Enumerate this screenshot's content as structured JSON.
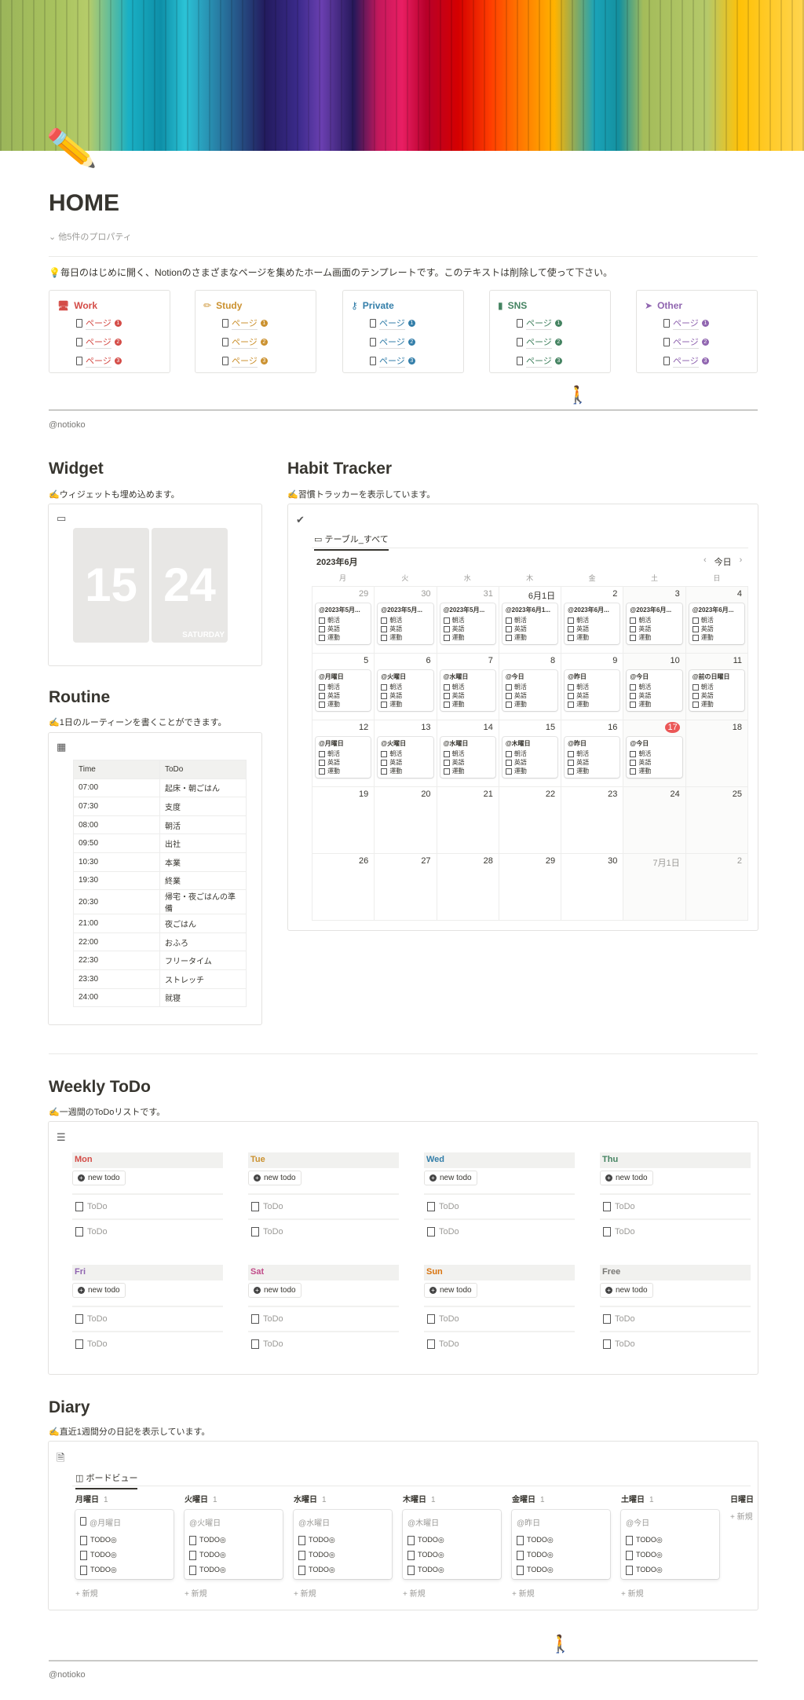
{
  "page": {
    "title": "HOME",
    "icon": "pencil-icon",
    "properties_toggle": "他5件のプロパティ",
    "description": "💡毎日のはじめに開く、Notionのさまざまなページを集めたホーム画面のテンプレートです。このテキストは削除して使って下さい。",
    "signature": "@notioko"
  },
  "categories": [
    {
      "label": "Work",
      "color": "#d44c47",
      "icon": "desktop-icon",
      "links": [
        "ページ",
        "ページ",
        "ページ"
      ]
    },
    {
      "label": "Study",
      "color": "#cb912f",
      "icon": "pencil-icon",
      "links": [
        "ページ",
        "ページ",
        "ページ"
      ]
    },
    {
      "label": "Private",
      "color": "#337ea9",
      "icon": "key-icon",
      "links": [
        "ページ",
        "ページ",
        "ページ"
      ]
    },
    {
      "label": "SNS",
      "color": "#448361",
      "icon": "phone-icon",
      "links": [
        "ページ",
        "ページ",
        "ページ"
      ]
    },
    {
      "label": "Other",
      "color": "#9065b0",
      "icon": "cursor-icon",
      "links": [
        "ページ",
        "ページ",
        "ページ"
      ]
    }
  ],
  "widget": {
    "heading": "Widget",
    "subtitle": "✍️ウィジェットも埋め込めます。",
    "hour": "15",
    "minute": "24",
    "weekday": "SATURDAY"
  },
  "routine": {
    "heading": "Routine",
    "subtitle": "✍️1日のルーティーンを書くことができます。",
    "columns": [
      "Time",
      "ToDo"
    ],
    "rows": [
      [
        "07:00",
        "起床・朝ごはん"
      ],
      [
        "07:30",
        "支度"
      ],
      [
        "08:00",
        "朝活"
      ],
      [
        "09:50",
        "出社"
      ],
      [
        "10:30",
        "本業"
      ],
      [
        "19:30",
        "終業"
      ],
      [
        "20:30",
        "帰宅・夜ごはんの準備"
      ],
      [
        "21:00",
        "夜ごはん"
      ],
      [
        "22:00",
        "おふろ"
      ],
      [
        "22:30",
        "フリータイム"
      ],
      [
        "23:30",
        "ストレッチ"
      ],
      [
        "24:00",
        "就寝"
      ]
    ]
  },
  "habit": {
    "heading": "Habit Tracker",
    "subtitle": "✍️習慣トラッカーを表示しています。",
    "tab": "テーブル_すべて",
    "month": "2023年6月",
    "today_button": "今日",
    "weekdays": [
      "月",
      "火",
      "水",
      "木",
      "金",
      "土",
      "日"
    ],
    "habits": [
      "朝活",
      "英語",
      "運動"
    ],
    "today": "17",
    "weeks": [
      [
        {
          "d": "29",
          "o": true,
          "t": "@2023年5月..."
        },
        {
          "d": "30",
          "o": true,
          "t": "@2023年5月..."
        },
        {
          "d": "31",
          "o": true,
          "t": "@2023年5月..."
        },
        {
          "d": "6月1日",
          "t": "@2023年6月1..."
        },
        {
          "d": "2",
          "t": "@2023年6月..."
        },
        {
          "d": "3",
          "t": "@2023年6月..."
        },
        {
          "d": "4",
          "t": "@2023年6月..."
        }
      ],
      [
        {
          "d": "5",
          "t": "@月曜日"
        },
        {
          "d": "6",
          "t": "@火曜日"
        },
        {
          "d": "7",
          "t": "@水曜日"
        },
        {
          "d": "8",
          "t": "@今日"
        },
        {
          "d": "9",
          "t": "@昨日"
        },
        {
          "d": "10",
          "t": "@今日"
        },
        {
          "d": "11",
          "t": "@前の日曜日"
        }
      ],
      [
        {
          "d": "12",
          "t": "@月曜日"
        },
        {
          "d": "13",
          "t": "@火曜日"
        },
        {
          "d": "14",
          "t": "@水曜日"
        },
        {
          "d": "15",
          "t": "@木曜日"
        },
        {
          "d": "16",
          "t": "@昨日"
        },
        {
          "d": "17",
          "t": "@今日"
        },
        {
          "d": "18"
        }
      ],
      [
        {
          "d": "19"
        },
        {
          "d": "20"
        },
        {
          "d": "21"
        },
        {
          "d": "22"
        },
        {
          "d": "23"
        },
        {
          "d": "24"
        },
        {
          "d": "25"
        }
      ],
      [
        {
          "d": "26"
        },
        {
          "d": "27"
        },
        {
          "d": "28"
        },
        {
          "d": "29"
        },
        {
          "d": "30"
        },
        {
          "d": "7月1日",
          "o": true
        },
        {
          "d": "2",
          "o": true
        }
      ]
    ]
  },
  "weekly": {
    "heading": "Weekly ToDo",
    "subtitle": "✍️一週間のToDoリストです。",
    "new_label": "new todo",
    "item_placeholder": "ToDo",
    "columns": [
      {
        "label": "Mon",
        "color": "#d44c47"
      },
      {
        "label": "Tue",
        "color": "#cb912f"
      },
      {
        "label": "Wed",
        "color": "#337ea9"
      },
      {
        "label": "Thu",
        "color": "#448361"
      },
      {
        "label": "Fri",
        "color": "#9065b0"
      },
      {
        "label": "Sat",
        "color": "#c14c8a"
      },
      {
        "label": "Sun",
        "color": "#d9730d"
      },
      {
        "label": "Free",
        "color": "#787774"
      }
    ]
  },
  "diary": {
    "heading": "Diary",
    "subtitle": "✍️直近1週間分の日記を表示しています。",
    "tab": "ボードビュー",
    "new_label": "新規",
    "todo_label": "TODO◎",
    "groups": [
      {
        "label": "月曜日",
        "count": "1",
        "card": "@月曜日"
      },
      {
        "label": "火曜日",
        "count": "1",
        "card": "@火曜日"
      },
      {
        "label": "水曜日",
        "count": "1",
        "card": "@水曜日"
      },
      {
        "label": "木曜日",
        "count": "1",
        "card": "@木曜日"
      },
      {
        "label": "金曜日",
        "count": "1",
        "card": "@昨日"
      },
      {
        "label": "土曜日",
        "count": "1",
        "card": "@今日"
      },
      {
        "label": "日曜日"
      }
    ]
  }
}
